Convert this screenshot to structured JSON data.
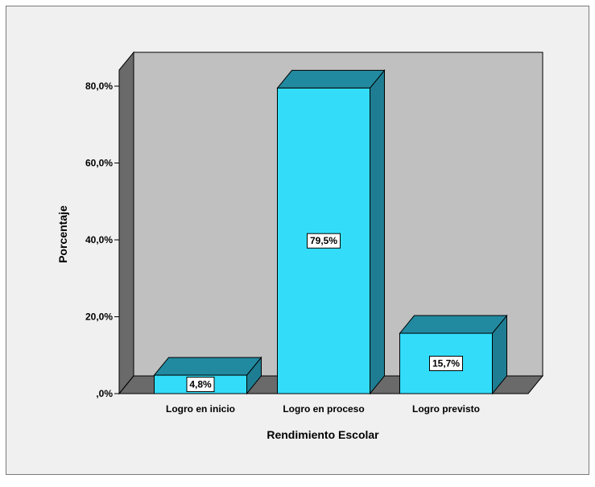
{
  "chart_data": {
    "type": "bar",
    "categories": [
      "Logro en inicio",
      "Logro en proceso",
      "Logro previsto"
    ],
    "values": [
      4.8,
      79.5,
      15.7
    ],
    "data_labels": [
      "4,8%",
      "79,5%",
      "15,7%"
    ],
    "title": "",
    "xlabel": "Rendimiento Escolar",
    "ylabel": "Porcentaje",
    "ylim": [
      0,
      80
    ],
    "yticks": [
      0,
      20,
      40,
      60,
      80
    ],
    "ytick_labels": [
      ",0%",
      "20,0%",
      "40,0%",
      "60,0%",
      "80,0%"
    ],
    "grid": false,
    "legend": "none",
    "style": "3d",
    "colors": {
      "bar_front": "#33ddfa",
      "bar_top": "#228aa0",
      "bar_side": "#1e7d92",
      "back_wall": "#c0c0c0",
      "side_wall": "#6a6a6a",
      "floor": "#6a6a6a",
      "background": "#f0f0f0"
    }
  }
}
